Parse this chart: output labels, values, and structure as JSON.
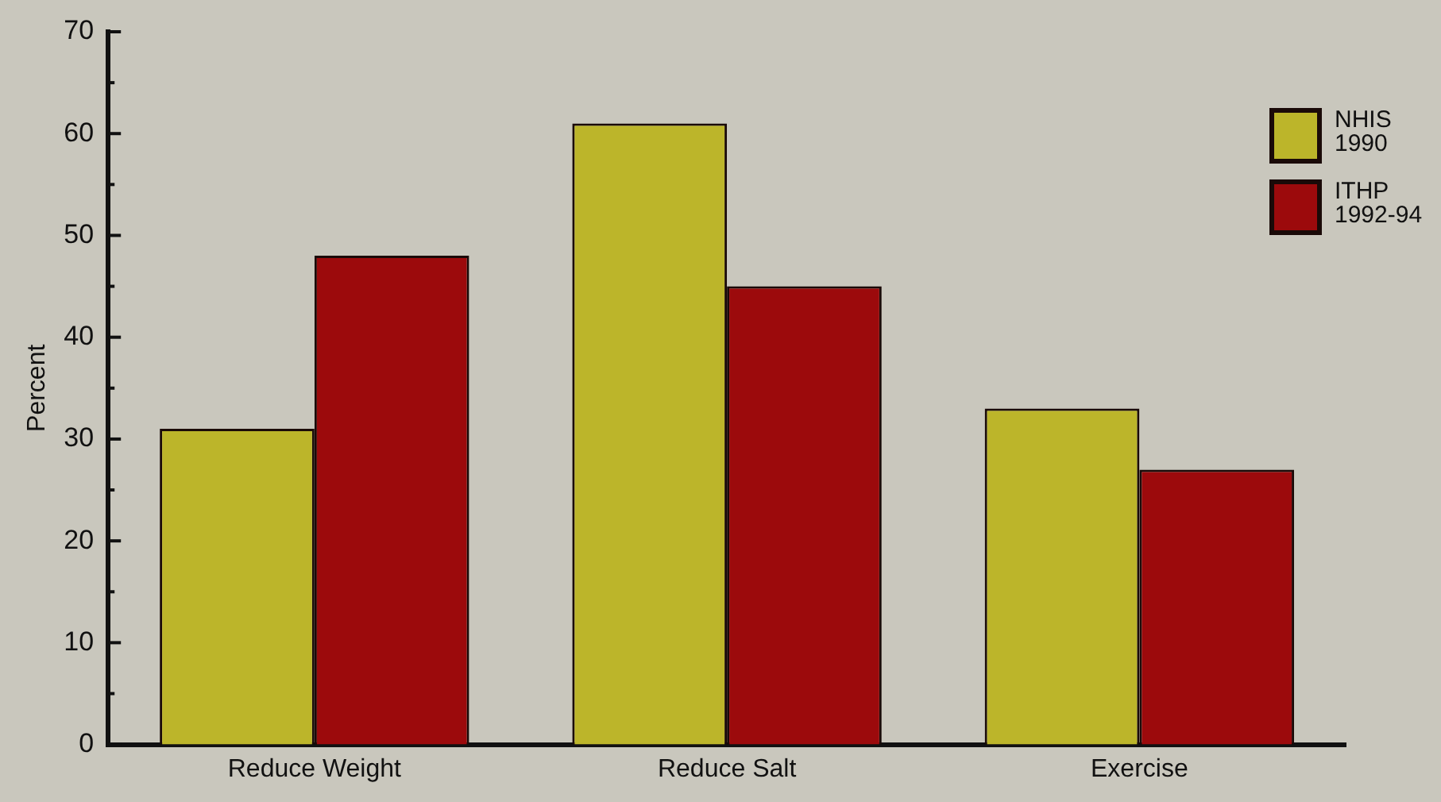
{
  "chart_data": {
    "type": "bar",
    "ylabel": "Percent",
    "categories": [
      "Reduce Weight",
      "Reduce Salt",
      "Exercise"
    ],
    "series": [
      {
        "name": "NHIS 1990",
        "color": "#bcb52a",
        "values": [
          31,
          61,
          33
        ]
      },
      {
        "name": "ITHP 1992-94",
        "color": "#9c0a0c",
        "values": [
          48,
          45,
          27
        ]
      }
    ],
    "ylim": [
      0,
      70
    ],
    "yticks": [
      0,
      {
        "value": 5,
        "label": null
      },
      10,
      {
        "value": 15,
        "label": null
      },
      20,
      {
        "value": 25,
        "label": null
      },
      30,
      {
        "value": 35,
        "label": null
      },
      40,
      {
        "value": 45,
        "label": null
      },
      50,
      {
        "value": 55,
        "label": null
      },
      60,
      {
        "value": 65,
        "label": null
      },
      70
    ],
    "grid": false,
    "legend": "top right"
  }
}
